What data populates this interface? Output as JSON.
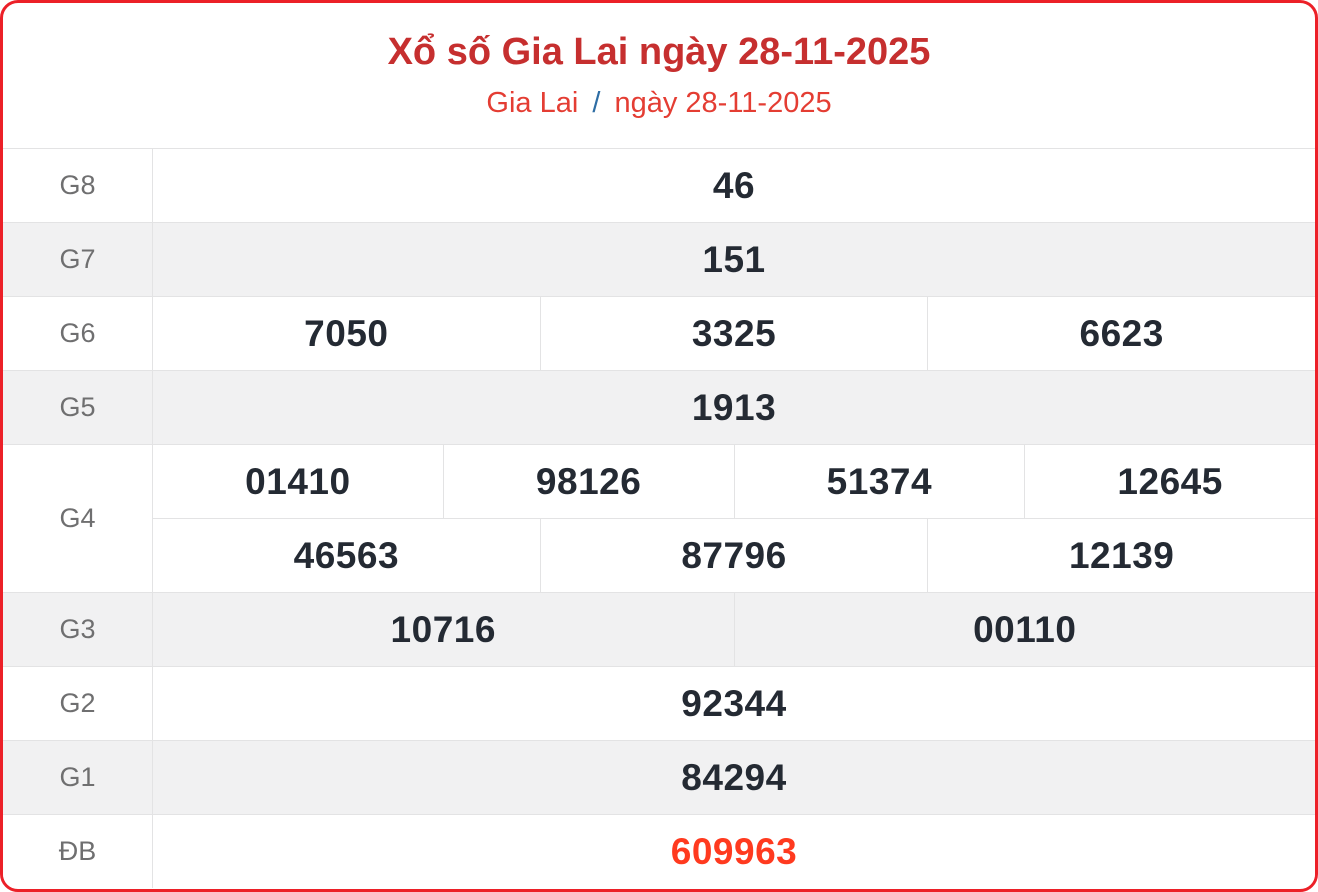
{
  "header": {
    "title": "Xổ số Gia Lai ngày 28-11-2025",
    "breadcrumb": {
      "region": "Gia Lai",
      "separator": "/",
      "date": "ngày 28-11-2025"
    }
  },
  "chart_data": {
    "type": "table",
    "title": "Xổ số Gia Lai ngày 28-11-2025",
    "columns": [
      "prize",
      "numbers"
    ],
    "rows": [
      {
        "label": "G8",
        "groups": [
          [
            "46"
          ]
        ],
        "highlight": false
      },
      {
        "label": "G7",
        "groups": [
          [
            "151"
          ]
        ],
        "highlight": false
      },
      {
        "label": "G6",
        "groups": [
          [
            "7050",
            "3325",
            "6623"
          ]
        ],
        "highlight": false
      },
      {
        "label": "G5",
        "groups": [
          [
            "1913"
          ]
        ],
        "highlight": false
      },
      {
        "label": "G4",
        "groups": [
          [
            "01410",
            "98126",
            "51374",
            "12645"
          ],
          [
            "46563",
            "87796",
            "12139"
          ]
        ],
        "highlight": false
      },
      {
        "label": "G3",
        "groups": [
          [
            "10716",
            "00110"
          ]
        ],
        "highlight": false
      },
      {
        "label": "G2",
        "groups": [
          [
            "92344"
          ]
        ],
        "highlight": false
      },
      {
        "label": "G1",
        "groups": [
          [
            "84294"
          ]
        ],
        "highlight": false
      },
      {
        "label": "ĐB",
        "groups": [
          [
            "609963"
          ]
        ],
        "highlight": true
      }
    ]
  },
  "colors": {
    "card_border": "#ec2028",
    "title_red": "#c62f2f",
    "subtitle_red": "#e43d33",
    "separator_blue": "#2e6da4",
    "number_dark": "#242a33",
    "special_red": "#ff3a1f",
    "row_shade": "#f1f1f2",
    "grid_line": "#e3e3e4",
    "label_gray": "#6f6f70"
  }
}
